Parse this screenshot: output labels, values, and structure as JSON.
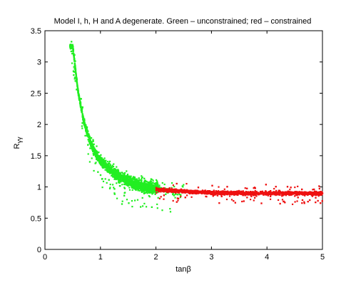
{
  "chart_data": {
    "type": "scatter",
    "title": "Model I, h, H and A degenerate. Green – unconstrained; red – constrained",
    "xlabel": "tanβ",
    "ylabel": {
      "main": "R",
      "sub": "γγ"
    },
    "xlim": [
      0,
      5
    ],
    "ylim": [
      0,
      3.5
    ],
    "xticks": [
      "0",
      "1",
      "2",
      "3",
      "4",
      "5"
    ],
    "yticks": [
      "0",
      "0.5",
      "1",
      "1.5",
      "2",
      "2.5",
      "3",
      "3.5"
    ],
    "grid": false,
    "legend": "none",
    "colors": {
      "green": "#22ee22",
      "red": "#ee1111"
    },
    "series": [
      {
        "color": "green",
        "x_range": [
          0.45,
          2.5
        ],
        "trend": [
          [
            0.5,
            3.25
          ],
          [
            0.6,
            2.5
          ],
          [
            0.7,
            2.05
          ],
          [
            0.8,
            1.75
          ],
          [
            0.9,
            1.55
          ],
          [
            1.0,
            1.42
          ],
          [
            1.2,
            1.25
          ],
          [
            1.4,
            1.13
          ],
          [
            1.6,
            1.06
          ],
          [
            1.8,
            1.01
          ],
          [
            2.0,
            0.98
          ],
          [
            2.2,
            0.95
          ],
          [
            2.5,
            0.93
          ]
        ]
      },
      {
        "color": "red",
        "x_range": [
          2.0,
          5.0
        ],
        "trend": [
          [
            2.0,
            0.96
          ],
          [
            2.5,
            0.93
          ],
          [
            3.0,
            0.91
          ],
          [
            3.5,
            0.9
          ],
          [
            4.0,
            0.9
          ],
          [
            4.5,
            0.9
          ],
          [
            5.0,
            0.9
          ]
        ]
      }
    ]
  }
}
